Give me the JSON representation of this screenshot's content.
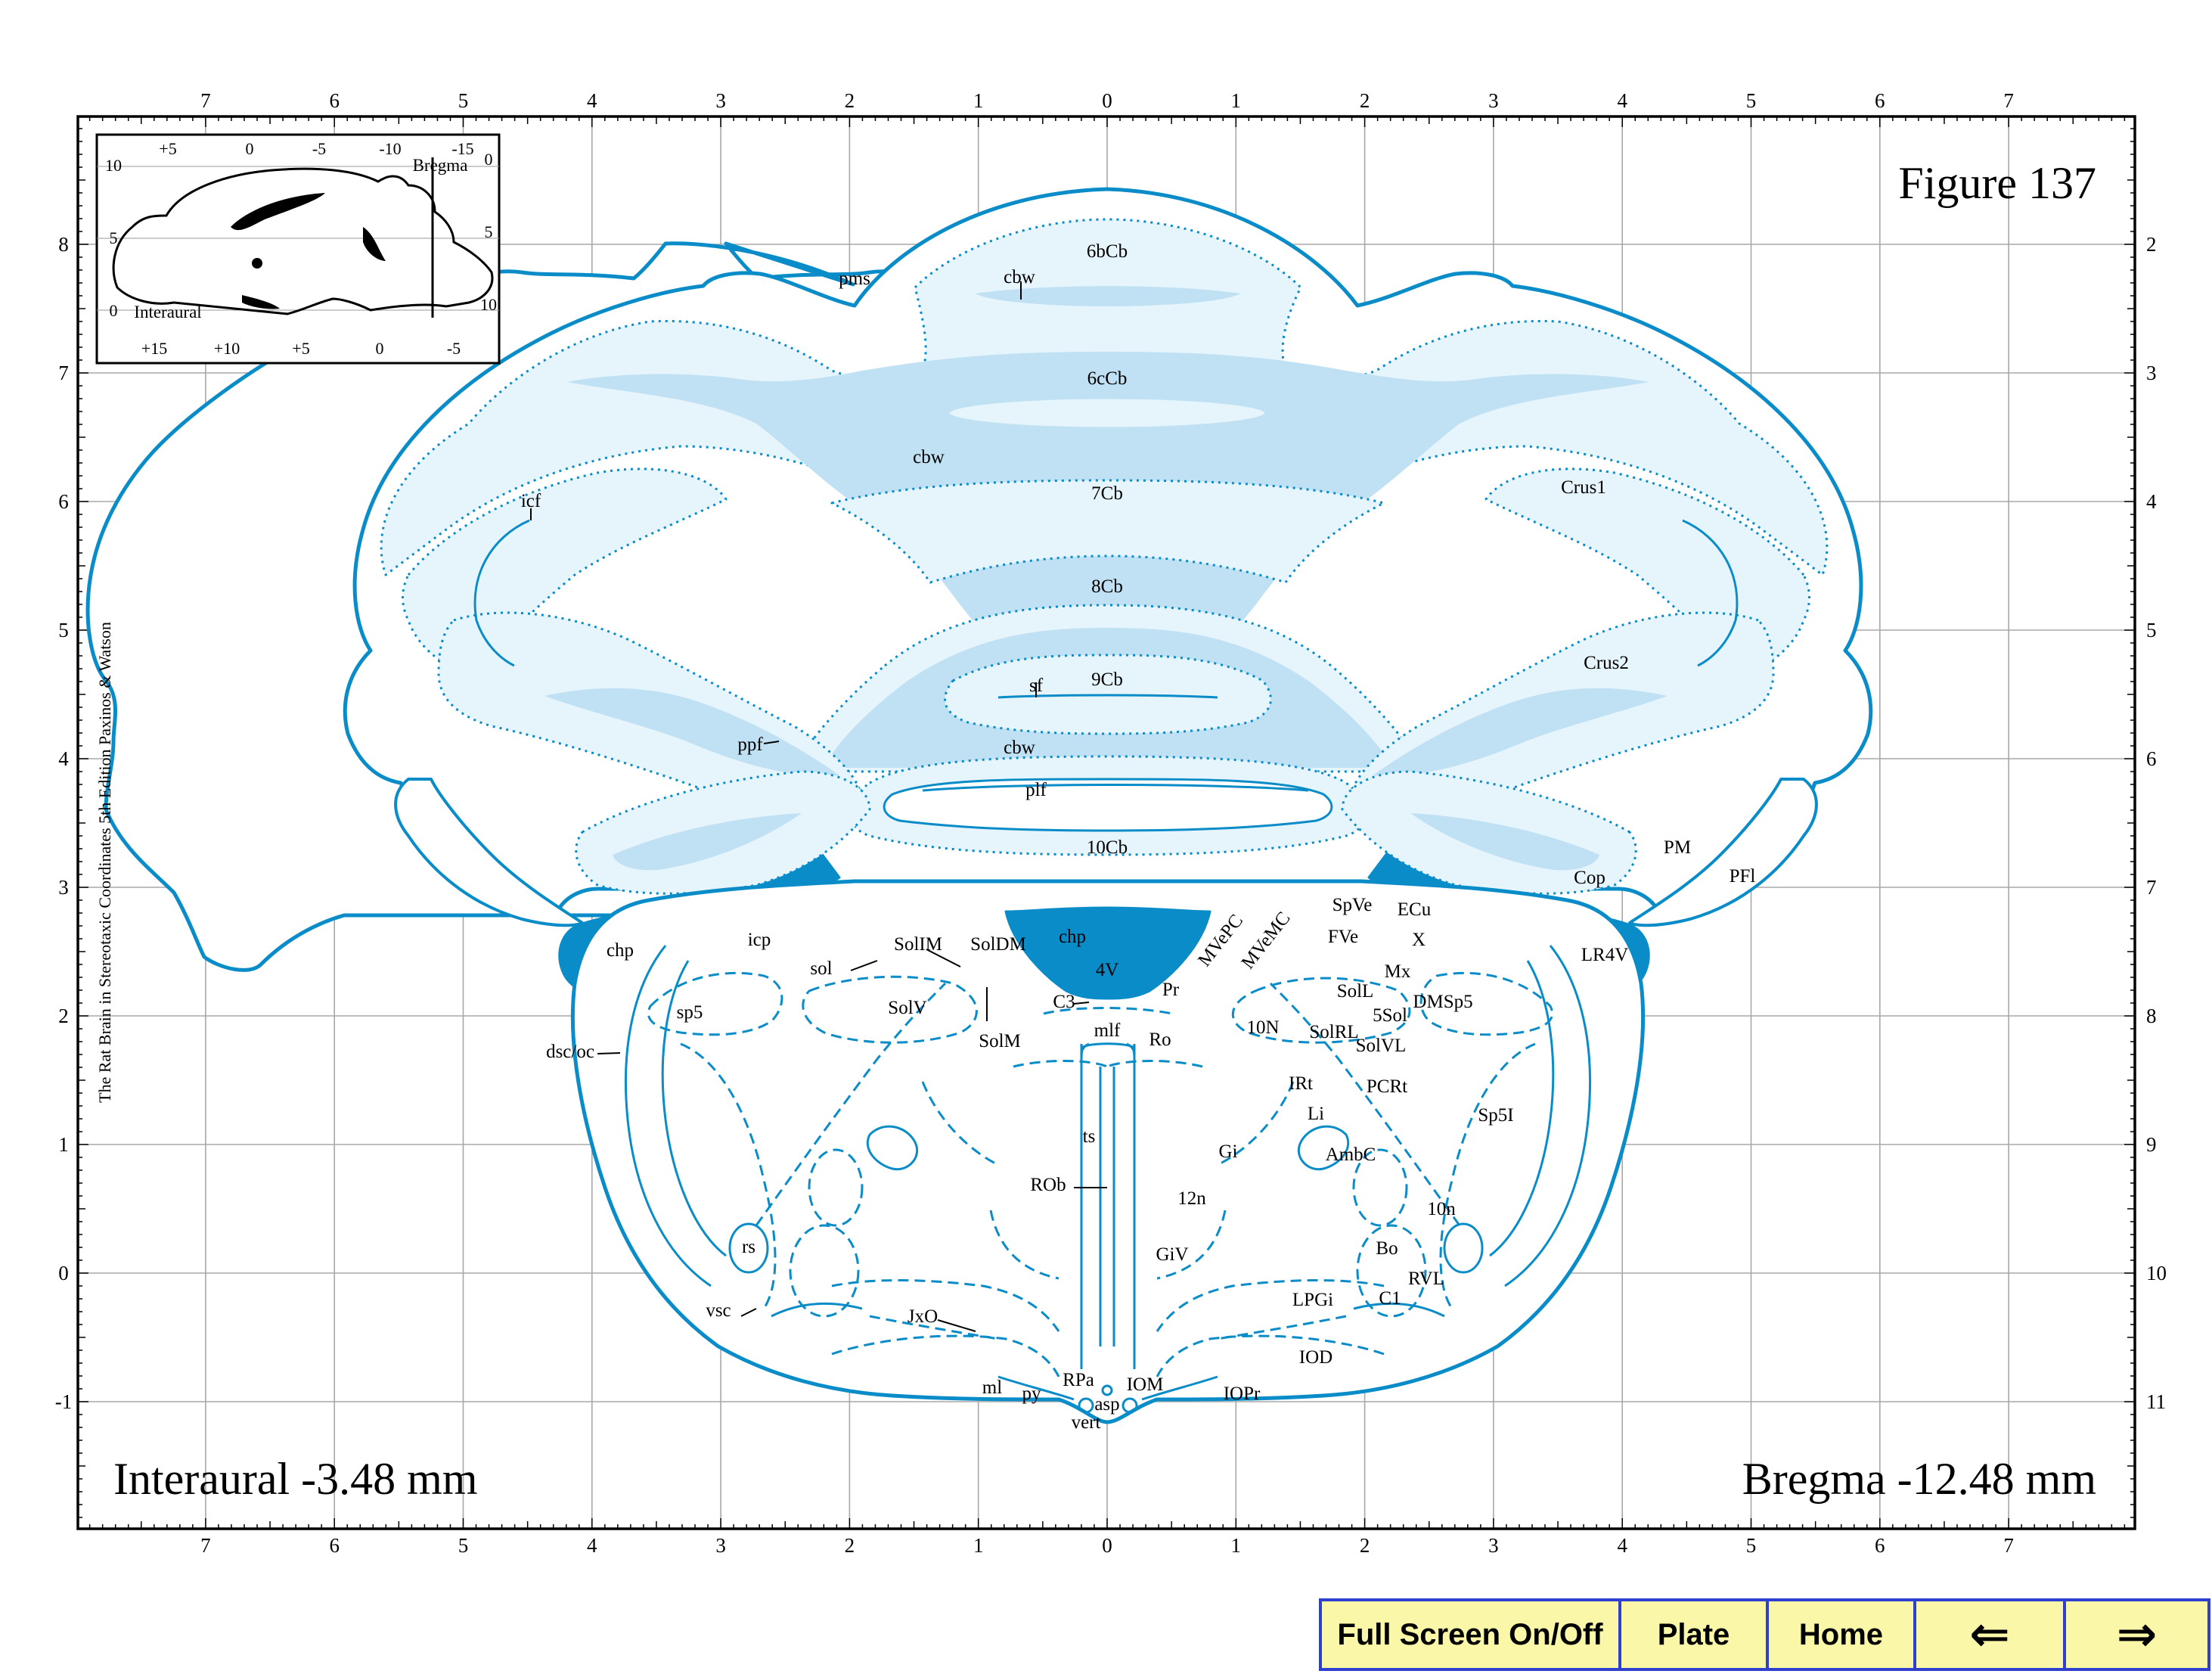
{
  "figure_title": "Figure 137",
  "interaural_label": "Interaural -3.48 mm",
  "bregma_label": "Bregma -12.48 mm",
  "side_credit": "The Rat Brain in Stereotaxic Coordinates  5th Edition  Paxinos & Watson",
  "top_axis_ticks": [
    "7",
    "6",
    "5",
    "4",
    "3",
    "2",
    "1",
    "0",
    "1",
    "2",
    "3",
    "4",
    "5",
    "6",
    "7"
  ],
  "bottom_axis_ticks": [
    "7",
    "6",
    "5",
    "4",
    "3",
    "2",
    "1",
    "0",
    "1",
    "2",
    "3",
    "4",
    "5",
    "6",
    "7"
  ],
  "left_axis_ticks": [
    "8",
    "7",
    "6",
    "5",
    "4",
    "3",
    "2",
    "1",
    "0",
    "-1"
  ],
  "right_axis_ticks": [
    "2",
    "3",
    "4",
    "5",
    "6",
    "7",
    "8",
    "9",
    "10",
    "11"
  ],
  "inset": {
    "top_ticks": [
      "+5",
      "0",
      "-5",
      "-10",
      "-15"
    ],
    "bottom_ticks": [
      "+15",
      "+10",
      "+5",
      "0",
      "-5"
    ],
    "left_ticks": [
      "10",
      "5",
      "0"
    ],
    "right_ticks": [
      "0",
      "5",
      "10"
    ],
    "bregma_label": "Bregma",
    "interaural_label": "Interaural"
  },
  "structure_labels": {
    "l6bCb": "6bCb",
    "l6cCb": "6cCb",
    "l7Cb": "7Cb",
    "l8Cb": "8Cb",
    "l9Cb": "9Cb",
    "l10Cb": "10Cb",
    "cbw1": "cbw",
    "cbw2": "cbw",
    "cbw3": "cbw",
    "pms": "pms",
    "icf": "icf",
    "Crus1": "Crus1",
    "Crus2": "Crus2",
    "sf": "sf",
    "ppf": "ppf",
    "plf": "plf",
    "PM": "PM",
    "PFl": "PFl",
    "Cop": "Cop",
    "chpL": "chp",
    "chpM": "chp",
    "LR4V": "LR4V",
    "V4": "4V",
    "icp": "icp",
    "sol": "sol",
    "SolIM": "SolIM",
    "SolDM": "SolDM",
    "SolV": "SolV",
    "SolM": "SolM",
    "sp5": "sp5",
    "dscoc": "dsc/oc",
    "C3": "C3",
    "Pr": "Pr",
    "mlf": "mlf",
    "Ro": "Ro",
    "MVePC": "MVePC",
    "MVeMC": "MVeMC",
    "SpVe": "SpVe",
    "ECu": "ECu",
    "FVe": "FVe",
    "X": "X",
    "Mx": "Mx",
    "SolL": "SolL",
    "n5Sol": "5Sol",
    "DMSp5": "DMSp5",
    "n10N": "10N",
    "SolRL": "SolRL",
    "SolVL": "SolVL",
    "IRt": "IRt",
    "PCRt": "PCRt",
    "Li": "Li",
    "Sp5I": "Sp5I",
    "ts": "ts",
    "Gi": "Gi",
    "AmbC": "AmbC",
    "ROb": "ROb",
    "n12n": "12n",
    "n10n": "10n",
    "rs": "rs",
    "GiV": "GiV",
    "Bo": "Bo",
    "RVL": "RVL",
    "C1": "C1",
    "LPGi": "LPGi",
    "vsc": "vsc",
    "JxO": "JxO",
    "IOD": "IOD",
    "ml": "ml",
    "py": "py",
    "RPa": "RPa",
    "IOM": "IOM",
    "IOPr": "IOPr",
    "asp": "asp",
    "vert": "vert"
  },
  "nav": {
    "fullscreen_label": "Full Screen On/Off",
    "plate_label": "Plate",
    "home_label": "Home",
    "back_label": "⇐",
    "forward_label": "⇒"
  },
  "colors": {
    "outline": "#0a8cc8",
    "white_matter": "#bfe1f3",
    "grey_matter": "#e6f4fc",
    "choroid_plexus": "#0a8cc8",
    "grid": "#a8a8a8",
    "nav_bg": "#fbf7a8",
    "nav_border": "#2f3fd0"
  }
}
